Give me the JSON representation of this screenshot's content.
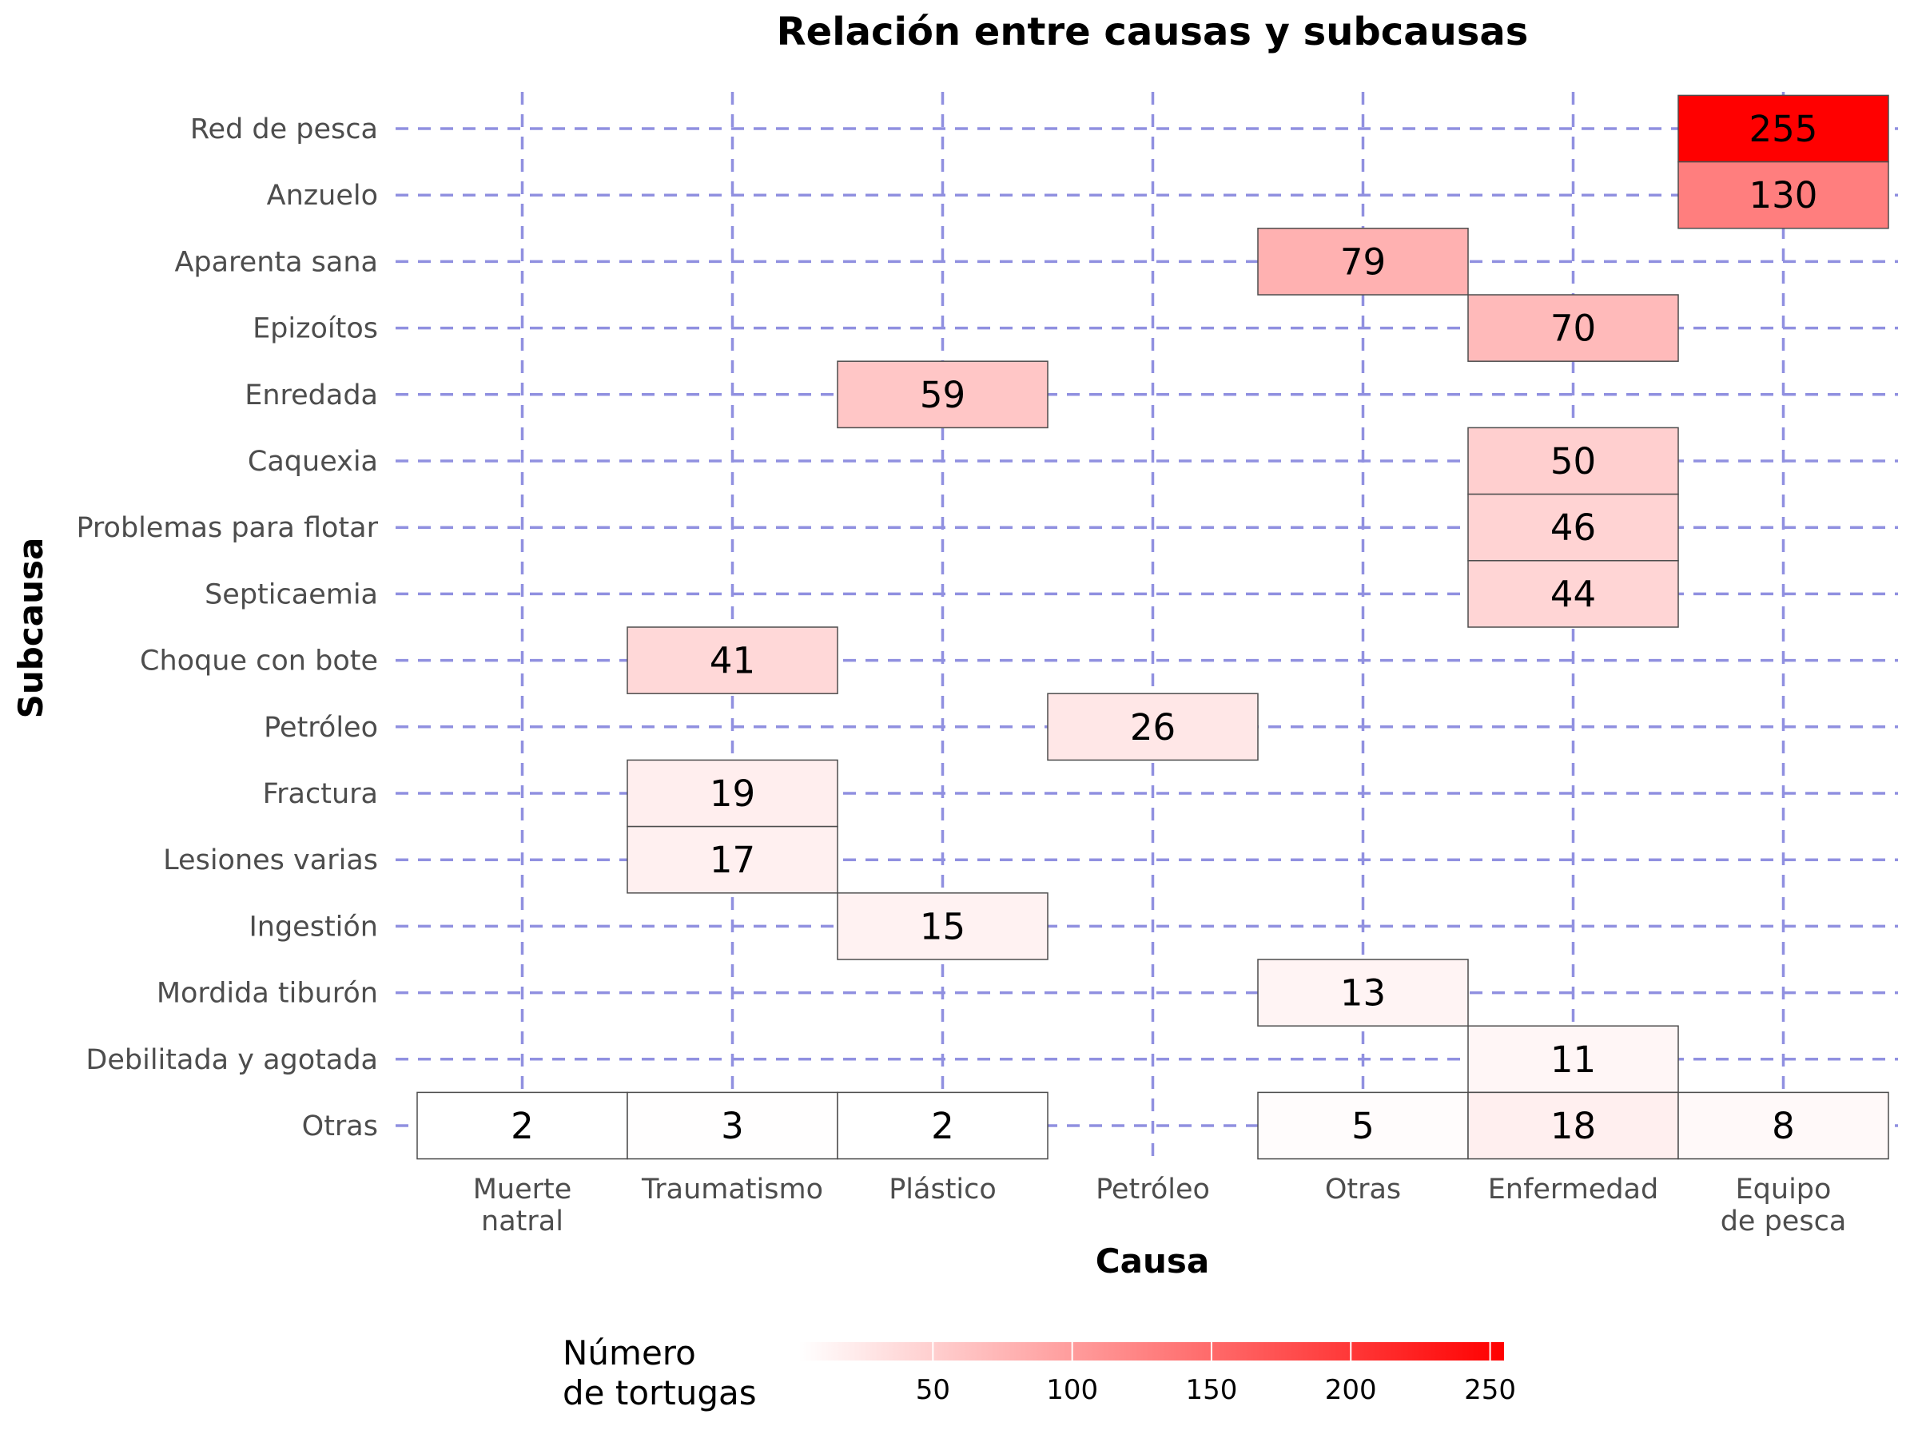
{
  "chart_data": {
    "type": "heatmap",
    "title": "Relación entre causas y subcausas",
    "xlabel": "Causa",
    "ylabel": "Subcausa",
    "x_categories": [
      [
        "Muerte",
        "natral"
      ],
      [
        "Traumatismo"
      ],
      [
        "Plástico"
      ],
      [
        "Petróleo"
      ],
      [
        "Otras"
      ],
      [
        "Enfermedad"
      ],
      [
        "Equipo",
        "de pesca"
      ]
    ],
    "y_categories": [
      "Red de pesca",
      "Anzuelo",
      "Aparenta sana",
      "Epizoítos",
      "Enredada",
      "Caquexia",
      "Problemas para flotar",
      "Septicaemia",
      "Choque con bote",
      "Petróleo",
      "Fractura",
      "Lesiones varias",
      "Ingestión",
      "Mordida tiburón",
      "Debilitada y agotada",
      "Otras"
    ],
    "cells": [
      {
        "x": 6,
        "y": 0,
        "value": 255
      },
      {
        "x": 6,
        "y": 1,
        "value": 130
      },
      {
        "x": 4,
        "y": 2,
        "value": 79
      },
      {
        "x": 5,
        "y": 3,
        "value": 70
      },
      {
        "x": 2,
        "y": 4,
        "value": 59
      },
      {
        "x": 5,
        "y": 5,
        "value": 50
      },
      {
        "x": 5,
        "y": 6,
        "value": 46
      },
      {
        "x": 5,
        "y": 7,
        "value": 44
      },
      {
        "x": 1,
        "y": 8,
        "value": 41
      },
      {
        "x": 3,
        "y": 9,
        "value": 26
      },
      {
        "x": 1,
        "y": 10,
        "value": 19
      },
      {
        "x": 1,
        "y": 11,
        "value": 17
      },
      {
        "x": 2,
        "y": 12,
        "value": 15
      },
      {
        "x": 4,
        "y": 13,
        "value": 13
      },
      {
        "x": 5,
        "y": 14,
        "value": 11
      },
      {
        "x": 0,
        "y": 15,
        "value": 2
      },
      {
        "x": 1,
        "y": 15,
        "value": 3
      },
      {
        "x": 2,
        "y": 15,
        "value": 2
      },
      {
        "x": 4,
        "y": 15,
        "value": 5
      },
      {
        "x": 5,
        "y": 15,
        "value": 18
      },
      {
        "x": 6,
        "y": 15,
        "value": 8
      }
    ],
    "color_scale": {
      "low": "#ffffff",
      "high": "#ff0000",
      "domain": [
        2,
        255
      ]
    },
    "legend": {
      "title": [
        "Número",
        "de tortugas"
      ],
      "ticks": [
        50,
        100,
        150,
        200,
        250
      ],
      "position": "bottom"
    },
    "grid": true,
    "grid_color": "#9090e0"
  }
}
